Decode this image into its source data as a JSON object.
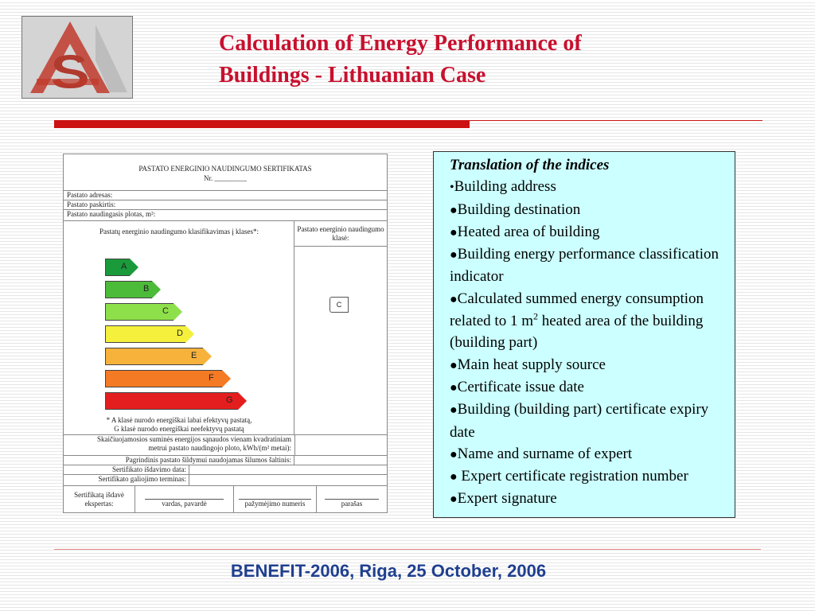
{
  "title": {
    "line1": "Calculation of Energy Performance of",
    "line2": "Buildings - Lithuanian Case"
  },
  "certificate": {
    "header_line1": "PASTATO ENERGINIO NAUDINGUMO SERTIFIKATAS",
    "header_line2": "Nr. _________",
    "address": "Pastato adresas:",
    "purpose": "Pastato paskirtis:",
    "area": "Pastato naudingasis plotas, m²:",
    "classification_label": "Pastatų energinio naudingumo klasifikavimas į klases*:",
    "class_header": "Pastato energinio naudingumo klasė:",
    "classes": [
      {
        "label": "A",
        "color": "#1a9a3a"
      },
      {
        "label": "B",
        "color": "#4cbb3a"
      },
      {
        "label": "C",
        "color": "#8ee04a"
      },
      {
        "label": "D",
        "color": "#f4f03c"
      },
      {
        "label": "E",
        "color": "#f7b23c"
      },
      {
        "label": "F",
        "color": "#f47a24"
      },
      {
        "label": "G",
        "color": "#e41e1e"
      }
    ],
    "selected_class": "C",
    "footnote_line1": "*  A klasė nurodo energiškai labai efektyvų pastatą,",
    "footnote_line2": "G klasė nurodo energiškai neefektyvų pastatą",
    "consumption_line1": "Skaičiuojamosios suminės energijos sąnaudos vienam kvadratiniam",
    "consumption_line2": "metrui pastato naudingojo ploto, kWh/(m² metai):",
    "heat_source": "Pagrindinis pastato šildymui naudojamas šilumos šaltinis:",
    "issue_date": "Sertifikato išdavimo data:",
    "expiry": "Sertifikato galiojimo terminas:",
    "issuer_line1": "Sertifikatą išdavė",
    "issuer_line2": "ekspertas:",
    "name": "vardas, pavardė",
    "cert_number": "pažymėjimo numeris",
    "signature": "parašas"
  },
  "translation": {
    "heading_first": "T",
    "heading_rest": "ranslation of the indices",
    "items": [
      "Building address",
      "Building destination",
      "Heated area of building",
      "Building energy performance classification indicator",
      "Calculated summed energy consumption related to 1 m",
      "Main heat supply source",
      "Certificate issue date",
      "Building (building part) certificate expiry date",
      "Name and surname of expert",
      " Expert certificate registration number",
      "Expert signature"
    ],
    "item5_sup": "2",
    "item5_rest": " heated area of the building (building part)"
  },
  "footer": "BENEFIT-2006, Riga, 25 October, 2006"
}
